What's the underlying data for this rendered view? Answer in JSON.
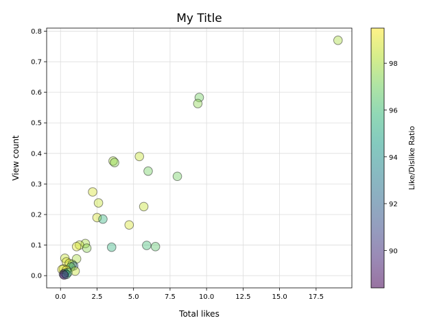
{
  "chart_data": {
    "type": "scatter",
    "title": "My Title",
    "xlabel": "Total likes",
    "ylabel": "View count",
    "colorbar_label": "Like/Dislike Ratio",
    "colormap": "viridis",
    "xlim": [
      -0.95,
      19.95
    ],
    "ylim": [
      -0.04,
      0.81
    ],
    "clim": [
      88.4,
      99.5
    ],
    "x_ticks": [
      0.0,
      2.5,
      5.0,
      7.5,
      10.0,
      12.5,
      15.0,
      17.5
    ],
    "x_tick_labels": [
      "0.0",
      "2.5",
      "5.0",
      "7.5",
      "10.0",
      "12.5",
      "15.0",
      "17.5"
    ],
    "y_ticks": [
      0.0,
      0.1,
      0.2,
      0.3,
      0.4,
      0.5,
      0.6,
      0.7,
      0.8
    ],
    "y_tick_labels": [
      "0.0",
      "0.1",
      "0.2",
      "0.3",
      "0.4",
      "0.5",
      "0.6",
      "0.7",
      "0.8"
    ],
    "colorbar_ticks": [
      90,
      92,
      94,
      96,
      98
    ],
    "colorbar_tick_labels": [
      "90",
      "92",
      "94",
      "96",
      "98"
    ],
    "grid": true,
    "marker_alpha": 0.4,
    "points": [
      {
        "x": 19.0,
        "y": 0.77,
        "c": 98.0
      },
      {
        "x": 9.5,
        "y": 0.583,
        "c": 97.0
      },
      {
        "x": 9.4,
        "y": 0.563,
        "c": 97.5
      },
      {
        "x": 5.4,
        "y": 0.39,
        "c": 98.5
      },
      {
        "x": 3.6,
        "y": 0.375,
        "c": 98.0
      },
      {
        "x": 3.7,
        "y": 0.37,
        "c": 97.5
      },
      {
        "x": 6.0,
        "y": 0.342,
        "c": 97.0
      },
      {
        "x": 8.0,
        "y": 0.325,
        "c": 97.0
      },
      {
        "x": 2.2,
        "y": 0.274,
        "c": 98.8
      },
      {
        "x": 2.6,
        "y": 0.238,
        "c": 98.5
      },
      {
        "x": 5.7,
        "y": 0.226,
        "c": 98.5
      },
      {
        "x": 2.5,
        "y": 0.19,
        "c": 98.8
      },
      {
        "x": 2.9,
        "y": 0.185,
        "c": 95.5
      },
      {
        "x": 4.7,
        "y": 0.166,
        "c": 98.8
      },
      {
        "x": 1.7,
        "y": 0.105,
        "c": 98.0
      },
      {
        "x": 1.3,
        "y": 0.1,
        "c": 98.5
      },
      {
        "x": 1.1,
        "y": 0.095,
        "c": 99.0
      },
      {
        "x": 1.8,
        "y": 0.09,
        "c": 97.5
      },
      {
        "x": 3.5,
        "y": 0.093,
        "c": 95.5
      },
      {
        "x": 5.9,
        "y": 0.099,
        "c": 96.0
      },
      {
        "x": 6.5,
        "y": 0.095,
        "c": 96.5
      },
      {
        "x": 0.3,
        "y": 0.057,
        "c": 98.5
      },
      {
        "x": 1.1,
        "y": 0.055,
        "c": 98.0
      },
      {
        "x": 0.4,
        "y": 0.045,
        "c": 99.0
      },
      {
        "x": 0.6,
        "y": 0.04,
        "c": 98.8
      },
      {
        "x": 0.8,
        "y": 0.037,
        "c": 97.5
      },
      {
        "x": 0.9,
        "y": 0.032,
        "c": 92.0
      },
      {
        "x": 0.7,
        "y": 0.028,
        "c": 96.5
      },
      {
        "x": 0.2,
        "y": 0.022,
        "c": 98.8
      },
      {
        "x": 0.1,
        "y": 0.02,
        "c": 99.0
      },
      {
        "x": 0.4,
        "y": 0.018,
        "c": 99.2
      },
      {
        "x": 1.0,
        "y": 0.015,
        "c": 98.5
      },
      {
        "x": 0.5,
        "y": 0.01,
        "c": 96.0
      },
      {
        "x": 0.3,
        "y": 0.008,
        "c": 94.0
      },
      {
        "x": 0.2,
        "y": 0.005,
        "c": 90.0
      },
      {
        "x": 0.4,
        "y": 0.004,
        "c": 95.0
      },
      {
        "x": 0.25,
        "y": 0.002,
        "c": 89.0
      }
    ]
  }
}
